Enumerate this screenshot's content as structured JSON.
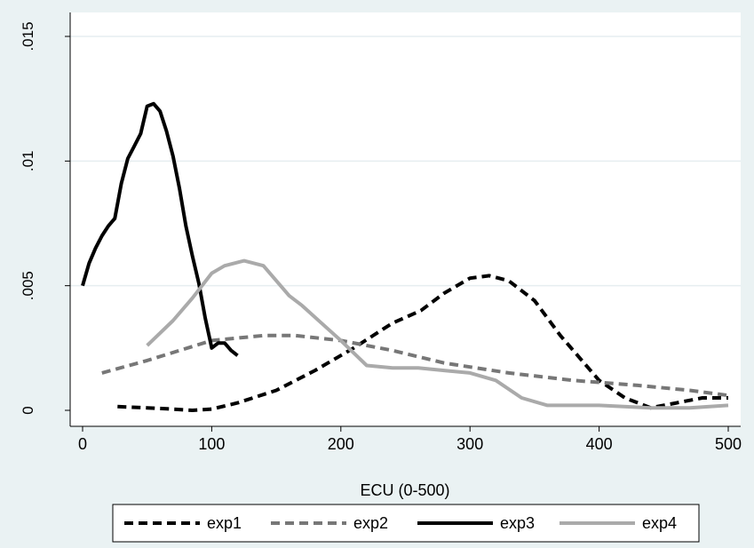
{
  "chart_data": {
    "type": "line",
    "xlabel": "ECU (0-500)",
    "ylabel": "",
    "xlim": [
      0,
      500
    ],
    "ylim": [
      0,
      0.015
    ],
    "x_ticks": [
      0,
      100,
      200,
      300,
      400,
      500
    ],
    "x_tick_labels": [
      "0",
      "100",
      "200",
      "300",
      "400",
      "500"
    ],
    "y_ticks": [
      0,
      0.005,
      0.01,
      0.015
    ],
    "y_tick_labels": [
      "0",
      ".005",
      ".01",
      ".015"
    ],
    "grid": true,
    "legend_position": "bottom",
    "series": [
      {
        "name": "exp1",
        "color": "#000000",
        "style": "dashed",
        "x": [
          27,
          50,
          70,
          85,
          100,
          120,
          150,
          180,
          210,
          240,
          262,
          280,
          300,
          315,
          330,
          350,
          370,
          400,
          420,
          440,
          460,
          480,
          500
        ],
        "y": [
          0.00015,
          0.0001,
          5e-05,
          0.0,
          5e-05,
          0.0003,
          0.0008,
          0.0016,
          0.0025,
          0.0035,
          0.004,
          0.0047,
          0.0053,
          0.0054,
          0.0052,
          0.0044,
          0.003,
          0.0012,
          0.0005,
          0.0001,
          0.0003,
          0.0005,
          0.0005
        ]
      },
      {
        "name": "exp2",
        "color": "#777777",
        "style": "dashed",
        "x": [
          15,
          50,
          100,
          140,
          165,
          200,
          240,
          280,
          330,
          380,
          430,
          470,
          500
        ],
        "y": [
          0.0015,
          0.002,
          0.0028,
          0.003,
          0.003,
          0.0028,
          0.0024,
          0.0019,
          0.0015,
          0.0012,
          0.001,
          0.0008,
          0.0006
        ]
      },
      {
        "name": "exp3",
        "color": "#000000",
        "style": "solid",
        "x": [
          0,
          5,
          10,
          15,
          20,
          25,
          30,
          35,
          40,
          45,
          50,
          55,
          60,
          65,
          70,
          75,
          80,
          85,
          90,
          95,
          100,
          105,
          110,
          115,
          120
        ],
        "y": [
          0.005,
          0.0059,
          0.0065,
          0.007,
          0.0074,
          0.0077,
          0.0091,
          0.0101,
          0.0106,
          0.0111,
          0.0122,
          0.0123,
          0.012,
          0.0112,
          0.0102,
          0.0089,
          0.0074,
          0.0062,
          0.0051,
          0.0037,
          0.0025,
          0.0027,
          0.0027,
          0.0024,
          0.0022
        ]
      },
      {
        "name": "exp4",
        "color": "#aaaaaa",
        "style": "solid",
        "x": [
          50,
          70,
          85,
          100,
          110,
          125,
          140,
          150,
          160,
          170,
          185,
          200,
          220,
          240,
          260,
          280,
          300,
          320,
          340,
          360,
          400,
          440,
          470,
          500
        ],
        "y": [
          0.0026,
          0.0036,
          0.0045,
          0.0055,
          0.0058,
          0.006,
          0.0058,
          0.0052,
          0.0046,
          0.0042,
          0.0035,
          0.0028,
          0.0018,
          0.0017,
          0.0017,
          0.0016,
          0.0015,
          0.0012,
          0.0005,
          0.0002,
          0.0002,
          0.0001,
          0.0001,
          0.0002
        ]
      }
    ]
  }
}
